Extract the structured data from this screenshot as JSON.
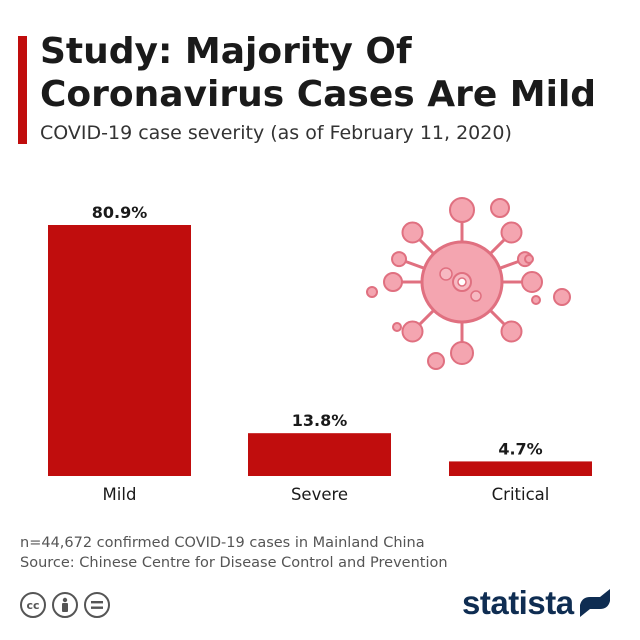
{
  "header": {
    "title": "Study: Majority Of Coronavirus Cases Are Mild",
    "subtitle": "COVID-19 case severity (as of February 11, 2020)"
  },
  "chart_data": {
    "type": "bar",
    "categories": [
      "Mild",
      "Severe",
      "Critical"
    ],
    "values": [
      80.9,
      13.8,
      4.7
    ],
    "data_labels": [
      "80.9%",
      "13.8%",
      "4.7%"
    ],
    "ylim": [
      0,
      80.9
    ],
    "grid": false,
    "bar_color": "#c00d0d"
  },
  "footer": {
    "note": "n=44,672 confirmed COVID-19 cases in Mainland China",
    "source": "Source: Chinese Centre for Disease Control and Prevention",
    "license_icons": [
      "cc-icon",
      "attribution-icon",
      "no-derivatives-icon"
    ],
    "brand": "statista"
  },
  "colors": {
    "accent": "#c00d0d",
    "virus": "#e07080",
    "brand": "#0f2d52"
  }
}
